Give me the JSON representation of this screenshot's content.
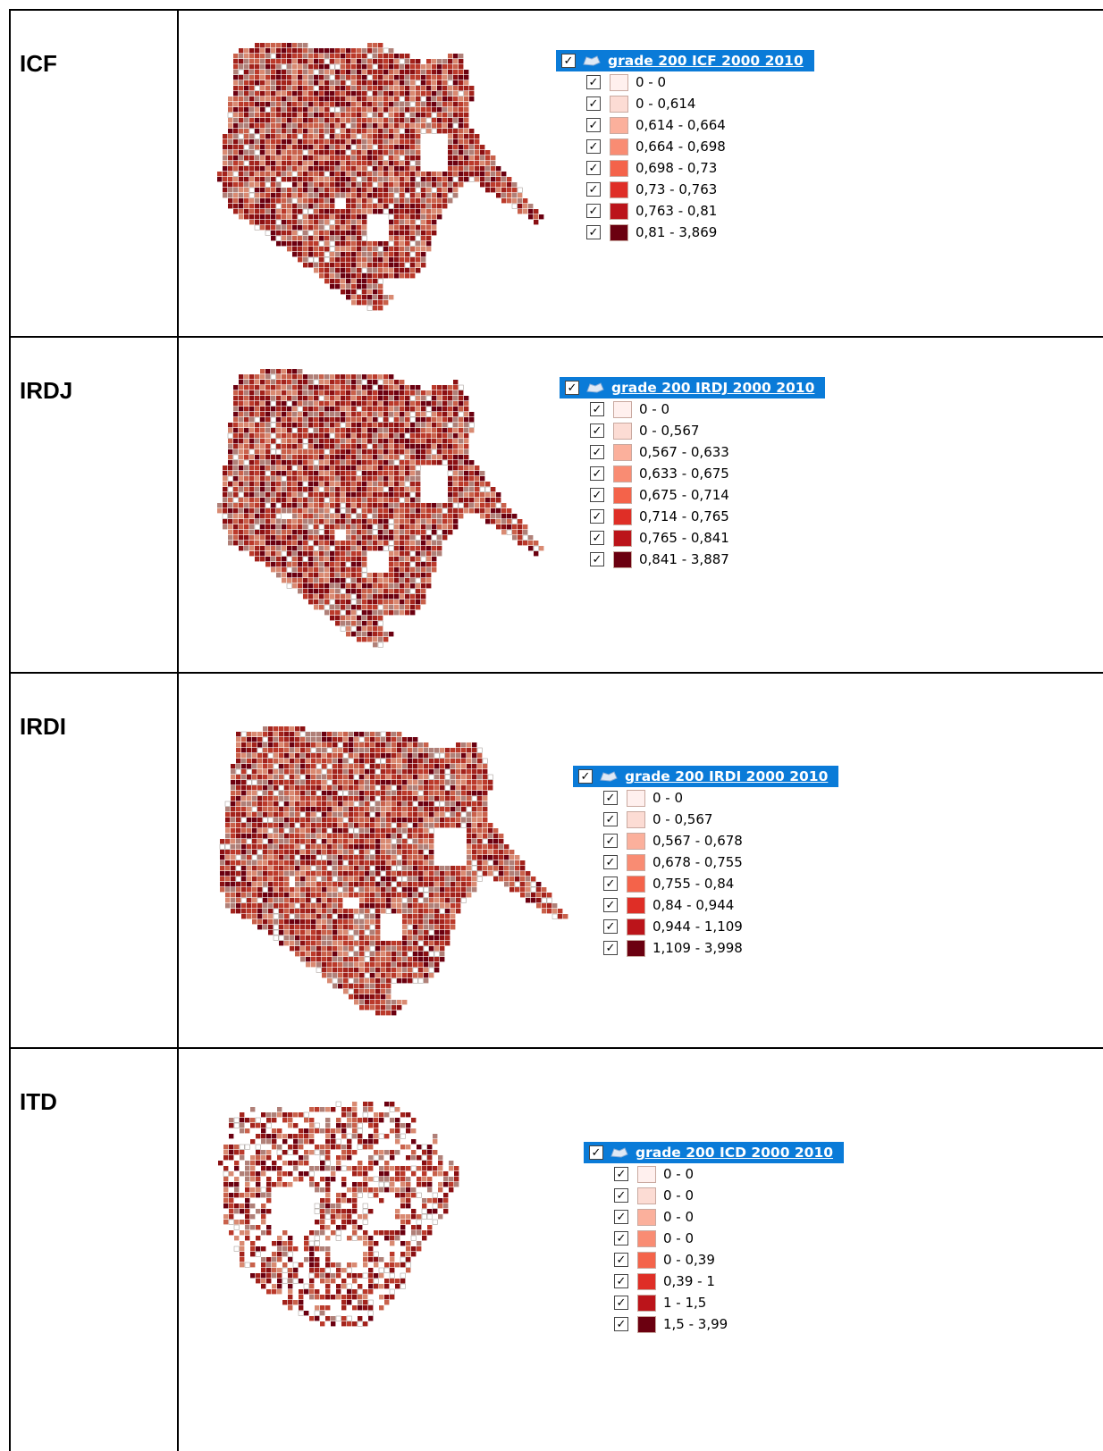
{
  "rows": [
    {
      "label": "ICF",
      "legend": {
        "title": "grade 200 ICF 2000 2010",
        "items": [
          {
            "label": "0 - 0",
            "color": "#fff0ee"
          },
          {
            "label": "0 - 0,614",
            "color": "#fcdcd4"
          },
          {
            "label": "0,614 - 0,664",
            "color": "#fbb09c"
          },
          {
            "label": "0,664 - 0,698",
            "color": "#f98c73"
          },
          {
            "label": "0,698 - 0,73",
            "color": "#f4634a"
          },
          {
            "label": "0,73 - 0,763",
            "color": "#df2e26"
          },
          {
            "label": "0,763 - 0,81",
            "color": "#bb141a"
          },
          {
            "label": "0,81 - 3,869",
            "color": "#6b0010"
          }
        ]
      }
    },
    {
      "label": "IRDJ",
      "legend": {
        "title": "grade 200 IRDJ 2000 2010",
        "items": [
          {
            "label": "0 - 0",
            "color": "#fff0ee"
          },
          {
            "label": "0 - 0,567",
            "color": "#fcdcd4"
          },
          {
            "label": "0,567 - 0,633",
            "color": "#fbb09c"
          },
          {
            "label": "0,633 - 0,675",
            "color": "#f98c73"
          },
          {
            "label": "0,675 - 0,714",
            "color": "#f4634a"
          },
          {
            "label": "0,714 - 0,765",
            "color": "#df2e26"
          },
          {
            "label": "0,765 - 0,841",
            "color": "#bb141a"
          },
          {
            "label": "0,841 - 3,887",
            "color": "#6b0010"
          }
        ]
      }
    },
    {
      "label": "IRDI",
      "legend": {
        "title": "grade 200 IRDI 2000 2010",
        "items": [
          {
            "label": "0 - 0",
            "color": "#fff0ee"
          },
          {
            "label": "0 - 0,567",
            "color": "#fcdcd4"
          },
          {
            "label": "0,567 - 0,678",
            "color": "#fbb09c"
          },
          {
            "label": "0,678 - 0,755",
            "color": "#f98c73"
          },
          {
            "label": "0,755 - 0,84",
            "color": "#f4634a"
          },
          {
            "label": "0,84 - 0,944",
            "color": "#df2e26"
          },
          {
            "label": "0,944 - 1,109",
            "color": "#bb141a"
          },
          {
            "label": "1,109 - 3,998",
            "color": "#6b0010"
          }
        ]
      }
    },
    {
      "label": "ITD",
      "legend": {
        "title": "grade 200 ICD 2000 2010",
        "items": [
          {
            "label": "0 - 0",
            "color": "#fff0ee"
          },
          {
            "label": "0 - 0",
            "color": "#fcdcd4"
          },
          {
            "label": "0 - 0",
            "color": "#fbb09c"
          },
          {
            "label": "0 - 0",
            "color": "#f98c73"
          },
          {
            "label": "0 - 0,39",
            "color": "#f4634a"
          },
          {
            "label": "0,39 - 1",
            "color": "#df2e26"
          },
          {
            "label": "1 - 1,5",
            "color": "#bb141a"
          },
          {
            "label": "1,5 - 3,99",
            "color": "#6b0010"
          }
        ]
      }
    }
  ],
  "icons": {
    "checkbox": "checkbox-checked-icon",
    "layer": "polygon-layer-icon"
  },
  "check_glyph": "✓"
}
